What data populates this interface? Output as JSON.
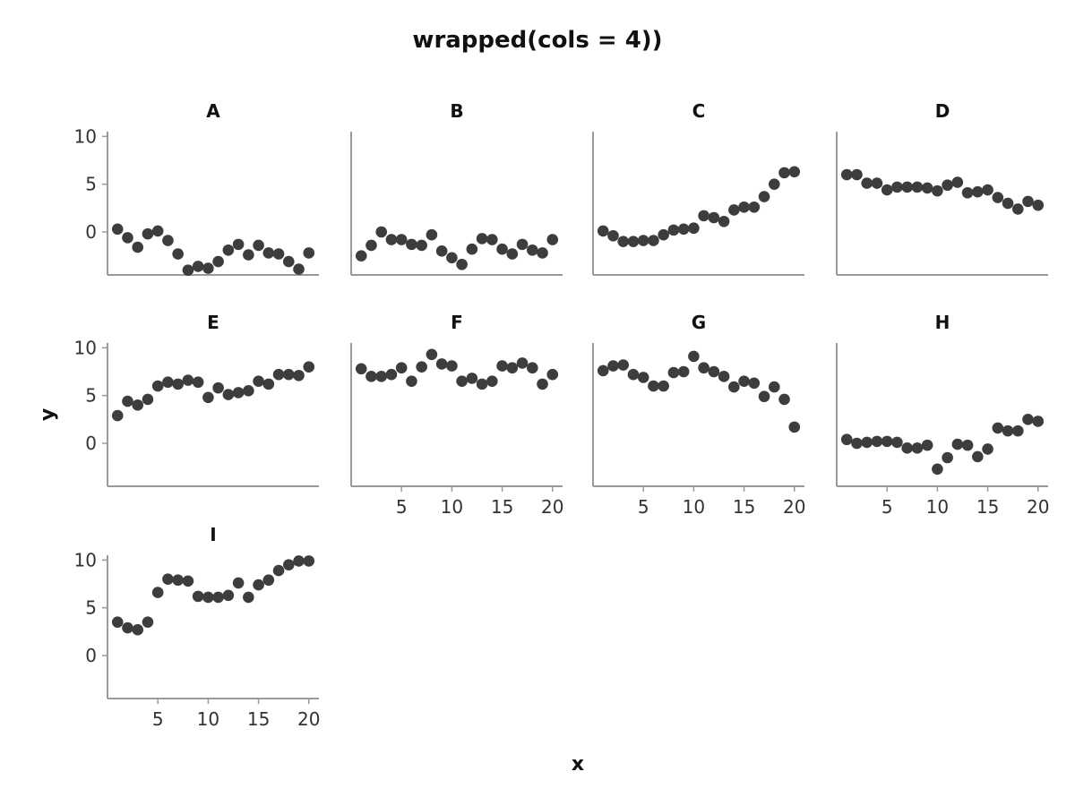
{
  "title": "wrapped(cols = 4))",
  "xlabel": "x",
  "ylabel": "y",
  "chart_data": {
    "type": "scatter",
    "title": "wrapped(cols = 4))",
    "xlabel": "x",
    "ylabel": "y",
    "xlim": [
      0,
      21
    ],
    "ylim": [
      -4.5,
      10.5
    ],
    "x_ticks": [
      5,
      10,
      15,
      20
    ],
    "y_ticks": [
      0,
      5,
      10
    ],
    "grid": false,
    "layout_cols": 4,
    "x": [
      1,
      2,
      3,
      4,
      5,
      6,
      7,
      8,
      9,
      10,
      11,
      12,
      13,
      14,
      15,
      16,
      17,
      18,
      19,
      20
    ],
    "panels": [
      {
        "name": "A",
        "values": [
          0.3,
          -0.6,
          -1.6,
          -0.2,
          0.1,
          -0.9,
          -2.3,
          -4.0,
          -3.6,
          -3.8,
          -3.1,
          -1.9,
          -1.3,
          -2.4,
          -1.4,
          -2.2,
          -2.3,
          -3.1,
          -3.9,
          -2.2
        ]
      },
      {
        "name": "B",
        "values": [
          -2.5,
          -1.4,
          0.0,
          -0.8,
          -0.8,
          -1.3,
          -1.4,
          -0.3,
          -2.0,
          -2.7,
          -3.4,
          -1.8,
          -0.7,
          -0.8,
          -1.8,
          -2.3,
          -1.3,
          -1.9,
          -2.2,
          -0.8
        ]
      },
      {
        "name": "C",
        "values": [
          0.1,
          -0.4,
          -1.0,
          -1.0,
          -0.9,
          -0.9,
          -0.3,
          0.2,
          0.3,
          0.4,
          1.7,
          1.5,
          1.1,
          2.3,
          2.6,
          2.6,
          3.7,
          5.0,
          6.2,
          6.3
        ]
      },
      {
        "name": "D",
        "values": [
          6.0,
          6.0,
          5.1,
          5.1,
          4.4,
          4.7,
          4.7,
          4.7,
          4.6,
          4.3,
          4.9,
          5.2,
          4.1,
          4.2,
          4.4,
          3.6,
          3.0,
          2.4,
          3.2,
          2.8
        ]
      },
      {
        "name": "E",
        "values": [
          2.9,
          4.4,
          4.0,
          4.6,
          6.0,
          6.4,
          6.2,
          6.6,
          6.4,
          4.8,
          5.8,
          5.1,
          5.3,
          5.5,
          6.5,
          6.2,
          7.2,
          7.2,
          7.1,
          8.0
        ]
      },
      {
        "name": "F",
        "values": [
          7.8,
          7.0,
          7.0,
          7.2,
          7.9,
          6.5,
          8.0,
          9.3,
          8.3,
          8.1,
          6.5,
          6.8,
          6.2,
          6.5,
          8.1,
          7.9,
          8.4,
          7.9,
          6.2,
          7.2
        ]
      },
      {
        "name": "G",
        "values": [
          7.6,
          8.1,
          8.2,
          7.2,
          6.9,
          6.0,
          6.0,
          7.4,
          7.5,
          9.1,
          7.9,
          7.5,
          7.0,
          5.9,
          6.5,
          6.3,
          4.9,
          5.9,
          4.6,
          1.7
        ]
      },
      {
        "name": "H",
        "values": [
          0.4,
          0.0,
          0.1,
          0.2,
          0.2,
          0.1,
          -0.5,
          -0.5,
          -0.2,
          -2.7,
          -1.5,
          -0.1,
          -0.2,
          -1.4,
          -0.6,
          1.6,
          1.3,
          1.3,
          2.5,
          2.3
        ]
      },
      {
        "name": "I",
        "values": [
          3.5,
          2.9,
          2.7,
          3.5,
          6.6,
          8.0,
          7.9,
          7.8,
          6.2,
          6.1,
          6.1,
          6.3,
          7.6,
          6.1,
          7.4,
          7.9,
          8.9,
          9.5,
          9.9,
          9.9
        ]
      }
    ]
  }
}
